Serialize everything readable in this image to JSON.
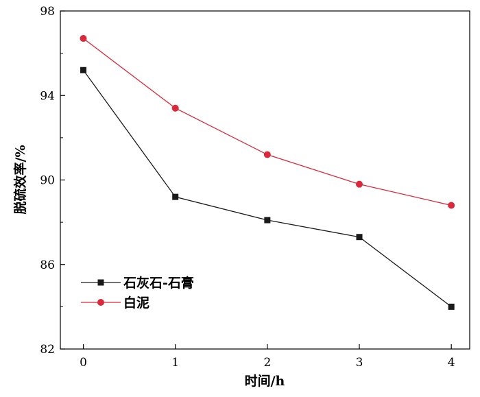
{
  "chart_data": {
    "type": "line",
    "xlabel": "时间/h",
    "ylabel": "脱硫效率/%",
    "x": [
      0,
      1,
      2,
      3,
      4
    ],
    "xlim": [
      -0.25,
      4.2
    ],
    "ylim": [
      82,
      98
    ],
    "xticks": [
      "0",
      "1",
      "2",
      "3",
      "4"
    ],
    "yticks": [
      "82",
      "86",
      "90",
      "94",
      "98"
    ],
    "grid": false,
    "legend_position": "bottom-left",
    "series": [
      {
        "name": "石灰石-石膏",
        "values": [
          95.2,
          89.2,
          88.1,
          87.3,
          84.0
        ],
        "color": "#1a1a1a",
        "marker": "square"
      },
      {
        "name": "白泥",
        "values": [
          96.7,
          93.4,
          91.2,
          89.8,
          88.8
        ],
        "color": "#d9293a",
        "marker": "circle"
      }
    ]
  }
}
